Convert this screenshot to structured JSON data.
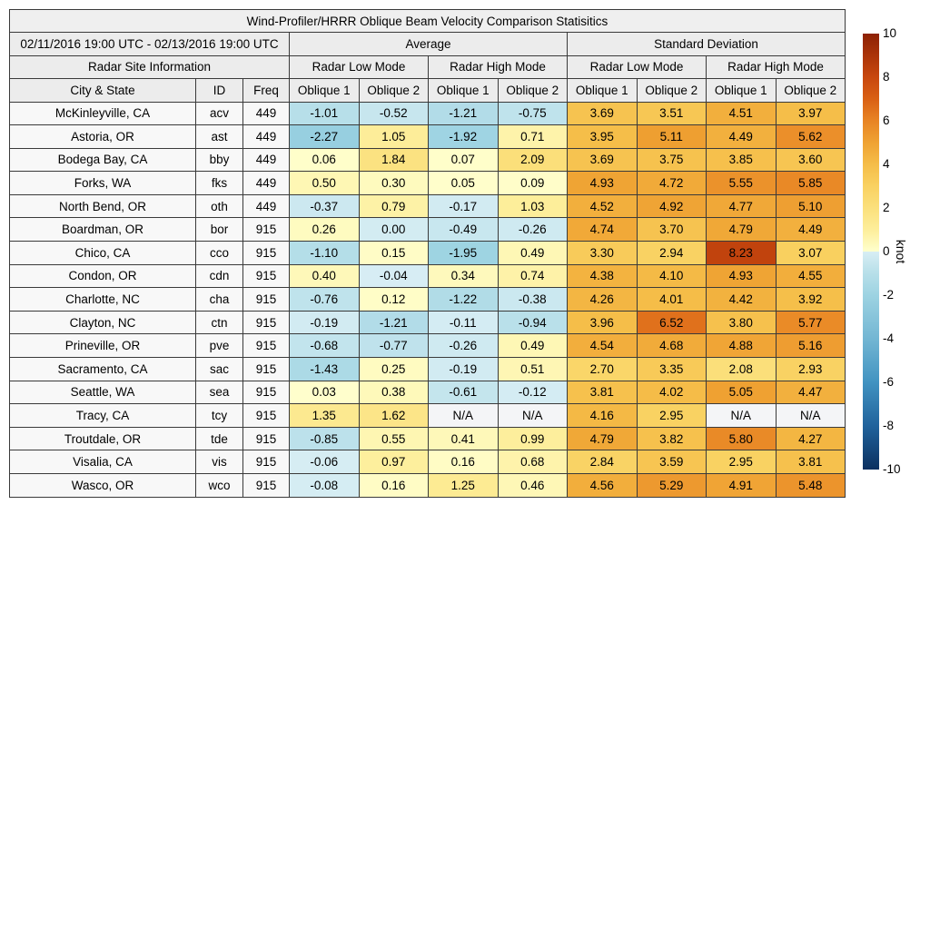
{
  "chart_data": {
    "type": "table",
    "title": "Wind-Profiler/HRRR Oblique Beam Velocity Comparison Statisitics",
    "date_range": "02/11/2016 19:00 UTC - 02/13/2016 19:00 UTC",
    "group_headers": [
      "Average",
      "Standard Deviation"
    ],
    "mode_headers": [
      "Radar Site Information",
      "Radar Low Mode",
      "Radar High Mode",
      "Radar Low Mode",
      "Radar High Mode"
    ],
    "column_headers": [
      "City & State",
      "ID",
      "Freq",
      "Oblique 1",
      "Oblique 2",
      "Oblique 1",
      "Oblique 2",
      "Oblique 1",
      "Oblique 2",
      "Oblique 1",
      "Oblique 2"
    ],
    "rows": [
      {
        "city": "McKinleyville, CA",
        "id": "acv",
        "freq": "449",
        "values": [
          "-1.01",
          "-0.52",
          "-1.21",
          "-0.75",
          "3.69",
          "3.51",
          "4.51",
          "3.97"
        ]
      },
      {
        "city": "Astoria, OR",
        "id": "ast",
        "freq": "449",
        "values": [
          "-2.27",
          "1.05",
          "-1.92",
          "0.71",
          "3.95",
          "5.11",
          "4.49",
          "5.62"
        ]
      },
      {
        "city": "Bodega Bay, CA",
        "id": "bby",
        "freq": "449",
        "values": [
          "0.06",
          "1.84",
          "0.07",
          "2.09",
          "3.69",
          "3.75",
          "3.85",
          "3.60"
        ]
      },
      {
        "city": "Forks, WA",
        "id": "fks",
        "freq": "449",
        "values": [
          "0.50",
          "0.30",
          "0.05",
          "0.09",
          "4.93",
          "4.72",
          "5.55",
          "5.85"
        ]
      },
      {
        "city": "North Bend, OR",
        "id": "oth",
        "freq": "449",
        "values": [
          "-0.37",
          "0.79",
          "-0.17",
          "1.03",
          "4.52",
          "4.92",
          "4.77",
          "5.10"
        ]
      },
      {
        "city": "Boardman, OR",
        "id": "bor",
        "freq": "915",
        "values": [
          "0.26",
          "0.00",
          "-0.49",
          "-0.26",
          "4.74",
          "3.70",
          "4.79",
          "4.49"
        ],
        "color_overrides": {
          "1": -0.15
        }
      },
      {
        "city": "Chico, CA",
        "id": "cco",
        "freq": "915",
        "values": [
          "-1.10",
          "0.15",
          "-1.95",
          "0.49",
          "3.30",
          "2.94",
          "8.23",
          "3.07"
        ]
      },
      {
        "city": "Condon, OR",
        "id": "cdn",
        "freq": "915",
        "values": [
          "0.40",
          "-0.04",
          "0.34",
          "0.74",
          "4.38",
          "4.10",
          "4.93",
          "4.55"
        ]
      },
      {
        "city": "Charlotte, NC",
        "id": "cha",
        "freq": "915",
        "values": [
          "-0.76",
          "0.12",
          "-1.22",
          "-0.38",
          "4.26",
          "4.01",
          "4.42",
          "3.92"
        ]
      },
      {
        "city": "Clayton, NC",
        "id": "ctn",
        "freq": "915",
        "values": [
          "-0.19",
          "-1.21",
          "-0.11",
          "-0.94",
          "3.96",
          "6.52",
          "3.80",
          "5.77"
        ]
      },
      {
        "city": "Prineville, OR",
        "id": "pve",
        "freq": "915",
        "values": [
          "-0.68",
          "-0.77",
          "-0.26",
          "0.49",
          "4.54",
          "4.68",
          "4.88",
          "5.16"
        ]
      },
      {
        "city": "Sacramento, CA",
        "id": "sac",
        "freq": "915",
        "values": [
          "-1.43",
          "0.25",
          "-0.19",
          "0.51",
          "2.70",
          "3.35",
          "2.08",
          "2.93"
        ]
      },
      {
        "city": "Seattle, WA",
        "id": "sea",
        "freq": "915",
        "values": [
          "0.03",
          "0.38",
          "-0.61",
          "-0.12",
          "3.81",
          "4.02",
          "5.05",
          "4.47"
        ]
      },
      {
        "city": "Tracy, CA",
        "id": "tcy",
        "freq": "915",
        "values": [
          "1.35",
          "1.62",
          "N/A",
          "N/A",
          "4.16",
          "2.95",
          "N/A",
          "N/A"
        ]
      },
      {
        "city": "Troutdale, OR",
        "id": "tde",
        "freq": "915",
        "values": [
          "-0.85",
          "0.55",
          "0.41",
          "0.99",
          "4.79",
          "3.82",
          "5.80",
          "4.27"
        ]
      },
      {
        "city": "Visalia, CA",
        "id": "vis",
        "freq": "915",
        "values": [
          "-0.06",
          "0.97",
          "0.16",
          "0.68",
          "2.84",
          "3.59",
          "2.95",
          "3.81"
        ]
      },
      {
        "city": "Wasco, OR",
        "id": "wco",
        "freq": "915",
        "values": [
          "-0.08",
          "0.16",
          "1.25",
          "0.46",
          "4.56",
          "5.29",
          "4.91",
          "5.48"
        ]
      }
    ],
    "color_scale": {
      "label": "knot",
      "min": -10,
      "max": 10,
      "ticks": [
        "10",
        "8",
        "6",
        "4",
        "2",
        "0",
        "-2",
        "-4",
        "-6",
        "-8",
        "-10"
      ],
      "stops": {
        "neg": [
          [
            -10,
            "#0b3060"
          ],
          [
            -8,
            "#20639c"
          ],
          [
            -6,
            "#4193c1"
          ],
          [
            -4,
            "#73b6d3"
          ],
          [
            -2,
            "#9dd3e2"
          ],
          [
            -1,
            "#b7dfe9"
          ],
          [
            0,
            "#d8eef4"
          ]
        ],
        "pos": [
          [
            0,
            "#ffffcd"
          ],
          [
            1,
            "#fdee9b"
          ],
          [
            2,
            "#fbe07c"
          ],
          [
            3,
            "#f9d161"
          ],
          [
            4,
            "#f5bd48"
          ],
          [
            5,
            "#efa233"
          ],
          [
            6,
            "#e88424"
          ],
          [
            7,
            "#d96014"
          ],
          [
            8,
            "#c8470e"
          ],
          [
            10,
            "#8d2104"
          ]
        ]
      },
      "na_color": "#f4f5f7"
    }
  }
}
